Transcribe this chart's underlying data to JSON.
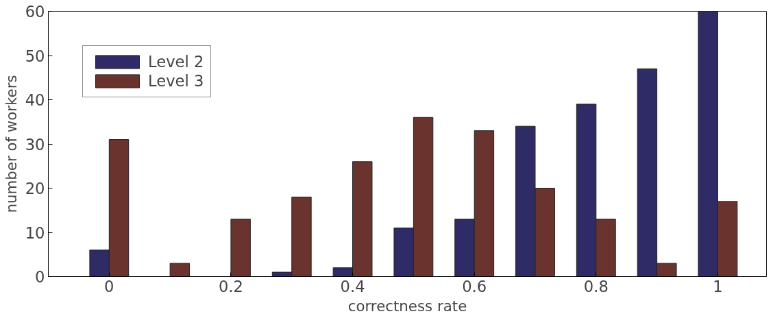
{
  "chart_data": {
    "type": "bar",
    "xlabel": "correctness rate",
    "ylabel": "number of workers",
    "x": [
      0,
      0.1,
      0.2,
      0.3,
      0.4,
      0.5,
      0.6,
      0.7,
      0.8,
      0.9,
      1
    ],
    "series": [
      {
        "name": "Level 2",
        "color": "#2e2b66",
        "values": [
          6,
          0,
          0,
          1,
          2,
          11,
          13,
          34,
          39,
          47,
          60
        ]
      },
      {
        "name": "Level 3",
        "color": "#6b332e",
        "values": [
          31,
          3,
          13,
          18,
          26,
          36,
          33,
          20,
          13,
          3,
          17
        ]
      }
    ],
    "xlim": [
      -0.1,
      1.08
    ],
    "ylim": [
      0,
      60
    ],
    "xticks": [
      0,
      0.2,
      0.4,
      0.6,
      0.8,
      1
    ],
    "yticks": [
      0,
      10,
      20,
      30,
      40,
      50,
      60
    ],
    "grid": false,
    "legend": "top left"
  }
}
